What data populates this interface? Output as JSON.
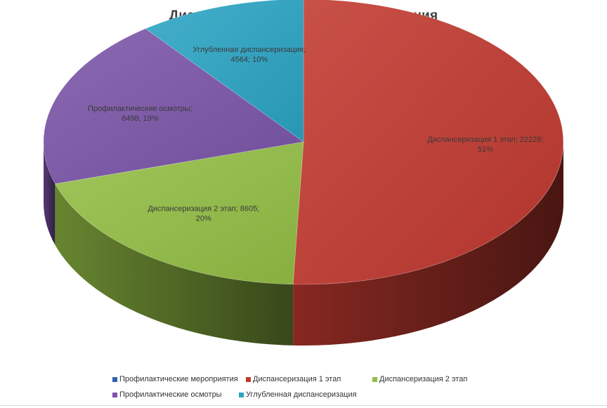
{
  "chart_data": {
    "type": "pie",
    "title": "Диспансеризация взрослого населения",
    "three_d": true,
    "legend_position": "bottom",
    "series": [
      {
        "name": "Профилактические мероприятия",
        "value": 0,
        "color": "#2f63a8",
        "label_lines": []
      },
      {
        "name": "Диспансеризация 1 этап",
        "value": 22229,
        "percent": "51%",
        "color": "#c0392f",
        "label_lines": [
          "Диспансеризация 1 этап; 22229;",
          "51%"
        ]
      },
      {
        "name": "Диспансеризация 2 этап",
        "value": 8605,
        "percent": "20%",
        "color": "#93be45",
        "label_lines": [
          "Диспансеризация 2 этап; 8605;",
          "20%"
        ]
      },
      {
        "name": "Профилактические осмотры",
        "value": 8498,
        "percent": "19%",
        "color": "#7b55a8",
        "label_lines": [
          "Профилактические осмотры;",
          "8498; 19%"
        ]
      },
      {
        "name": "Углубленная диспансеризация",
        "value": 4564,
        "percent": "10%",
        "color": "#2aa4c4",
        "label_lines": [
          "Углубленная диспансеризация;",
          "4564; 10%"
        ]
      }
    ]
  }
}
